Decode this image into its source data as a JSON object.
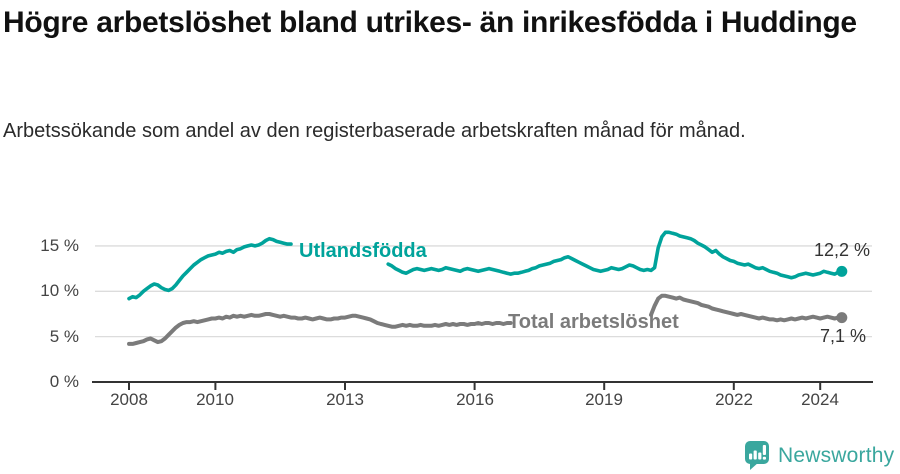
{
  "header": {
    "title": "Högre arbetslöshet bland utrikes- än inrikesfödda i Huddinge",
    "subtitle": "Arbetssökande som andel av den registerbaserade arbetskraften månad för månad."
  },
  "chart_data": {
    "type": "line",
    "title": "Högre arbetslöshet bland utrikes- än inrikesfödda i Huddinge",
    "x_start": "2008-01",
    "x_end": "2024-07",
    "frequency": "monthly",
    "x_tick_labels": [
      "2008",
      "2010",
      "2013",
      "2016",
      "2019",
      "2022",
      "2024"
    ],
    "x_tick_years": [
      2008,
      2010,
      2013,
      2016,
      2019,
      2022,
      2024
    ],
    "y_tick_labels": [
      "0 %",
      "5 %",
      "10 %",
      "15 %"
    ],
    "y_ticks": [
      0,
      5,
      10,
      15
    ],
    "ylim": [
      0,
      17.5
    ],
    "grid": "horizontal",
    "axis_color": "#333333",
    "grid_color": "#dcdcdc",
    "tick_label_color": "#444444",
    "value_label_color": "#333333",
    "series": [
      {
        "name": "Utlandsfödda",
        "color": "#00a39b",
        "end_label": "12,2 %",
        "last_value": 12.2,
        "values": [
          9.2,
          9.4,
          9.3,
          9.6,
          10.0,
          10.3,
          10.6,
          10.8,
          10.7,
          10.4,
          10.2,
          10.1,
          10.3,
          10.7,
          11.2,
          11.7,
          12.1,
          12.5,
          12.9,
          13.2,
          13.5,
          13.7,
          13.9,
          14.0,
          14.1,
          14.3,
          14.2,
          14.4,
          14.5,
          14.3,
          14.6,
          14.7,
          14.9,
          15.0,
          15.1,
          15.0,
          15.1,
          15.3,
          15.6,
          15.8,
          15.7,
          15.5,
          15.4,
          15.3,
          15.2,
          15.2,
          null,
          null,
          null,
          null,
          null,
          null,
          null,
          null,
          null,
          null,
          null,
          null,
          null,
          null,
          null,
          null,
          null,
          null,
          null,
          null,
          null,
          null,
          null,
          null,
          null,
          null,
          13.0,
          12.8,
          12.5,
          12.3,
          12.1,
          12.0,
          12.2,
          12.4,
          12.5,
          12.4,
          12.3,
          12.4,
          12.5,
          12.4,
          12.3,
          12.4,
          12.6,
          12.5,
          12.4,
          12.3,
          12.2,
          12.4,
          12.5,
          12.4,
          12.3,
          12.2,
          12.3,
          12.4,
          12.5,
          12.4,
          12.3,
          12.2,
          12.1,
          12.0,
          11.9,
          12.0,
          12.0,
          12.1,
          12.2,
          12.3,
          12.5,
          12.6,
          12.8,
          12.9,
          13.0,
          13.1,
          13.3,
          13.4,
          13.5,
          13.7,
          13.8,
          13.6,
          13.4,
          13.2,
          13.0,
          12.8,
          12.6,
          12.4,
          12.3,
          12.2,
          12.3,
          12.4,
          12.6,
          12.5,
          12.4,
          12.5,
          12.7,
          12.9,
          12.8,
          12.6,
          12.4,
          12.3,
          12.4,
          12.3,
          12.6,
          14.8,
          16.0,
          16.5,
          16.5,
          16.4,
          16.3,
          16.1,
          16.0,
          15.9,
          15.8,
          15.6,
          15.3,
          15.1,
          14.9,
          14.6,
          14.3,
          14.5,
          14.1,
          13.8,
          13.6,
          13.4,
          13.3,
          13.1,
          13.0,
          12.9,
          13.0,
          12.8,
          12.6,
          12.5,
          12.6,
          12.4,
          12.2,
          12.1,
          12.0,
          11.8,
          11.7,
          11.6,
          11.5,
          11.6,
          11.8,
          11.9,
          12.0,
          11.9,
          11.8,
          11.9,
          12.0,
          12.2,
          12.1,
          12.0,
          11.9,
          12.1,
          12.2
        ]
      },
      {
        "name": "Total arbetslöshet",
        "color": "#7b7b7b",
        "end_label": "7,1 %",
        "last_value": 7.1,
        "values": [
          4.2,
          4.2,
          4.3,
          4.4,
          4.5,
          4.7,
          4.8,
          4.6,
          4.4,
          4.5,
          4.8,
          5.2,
          5.6,
          6.0,
          6.3,
          6.5,
          6.6,
          6.6,
          6.7,
          6.6,
          6.7,
          6.8,
          6.9,
          7.0,
          7.0,
          7.1,
          7.0,
          7.2,
          7.1,
          7.3,
          7.2,
          7.3,
          7.2,
          7.3,
          7.4,
          7.3,
          7.3,
          7.4,
          7.5,
          7.5,
          7.4,
          7.3,
          7.2,
          7.3,
          7.2,
          7.1,
          7.1,
          7.0,
          7.0,
          7.1,
          7.0,
          6.9,
          7.0,
          7.1,
          7.0,
          6.9,
          6.9,
          7.0,
          7.0,
          7.1,
          7.1,
          7.2,
          7.3,
          7.3,
          7.2,
          7.1,
          7.0,
          6.9,
          6.7,
          6.5,
          6.4,
          6.3,
          6.2,
          6.1,
          6.1,
          6.2,
          6.3,
          6.2,
          6.3,
          6.2,
          6.2,
          6.3,
          6.2,
          6.2,
          6.2,
          6.3,
          6.2,
          6.3,
          6.4,
          6.3,
          6.4,
          6.3,
          6.4,
          6.4,
          6.3,
          6.4,
          6.4,
          6.5,
          6.4,
          6.5,
          6.5,
          6.4,
          6.5,
          6.5,
          6.4,
          6.5,
          6.5,
          null,
          null,
          null,
          null,
          null,
          null,
          null,
          null,
          null,
          null,
          null,
          null,
          null,
          null,
          null,
          null,
          null,
          null,
          null,
          null,
          null,
          null,
          null,
          null,
          null,
          null,
          null,
          null,
          null,
          null,
          null,
          null,
          null,
          null,
          null,
          null,
          null,
          null,
          7.4,
          8.4,
          9.2,
          9.5,
          9.5,
          9.4,
          9.3,
          9.2,
          9.3,
          9.1,
          9.0,
          8.9,
          8.8,
          8.7,
          8.5,
          8.4,
          8.3,
          8.1,
          8.0,
          7.9,
          7.8,
          7.7,
          7.6,
          7.5,
          7.4,
          7.5,
          7.4,
          7.3,
          7.2,
          7.1,
          7.0,
          7.1,
          7.0,
          6.9,
          6.9,
          6.8,
          6.9,
          6.8,
          6.9,
          7.0,
          6.9,
          7.0,
          7.1,
          7.0,
          7.1,
          7.2,
          7.1,
          7.0,
          7.1,
          7.2,
          7.1,
          7.0,
          7.1,
          7.1
        ]
      }
    ]
  },
  "footer": {
    "brand": "Newsworthy",
    "brand_color": "#3aa79e",
    "logo_icon": "speech-bubble-bar-chart-icon"
  }
}
